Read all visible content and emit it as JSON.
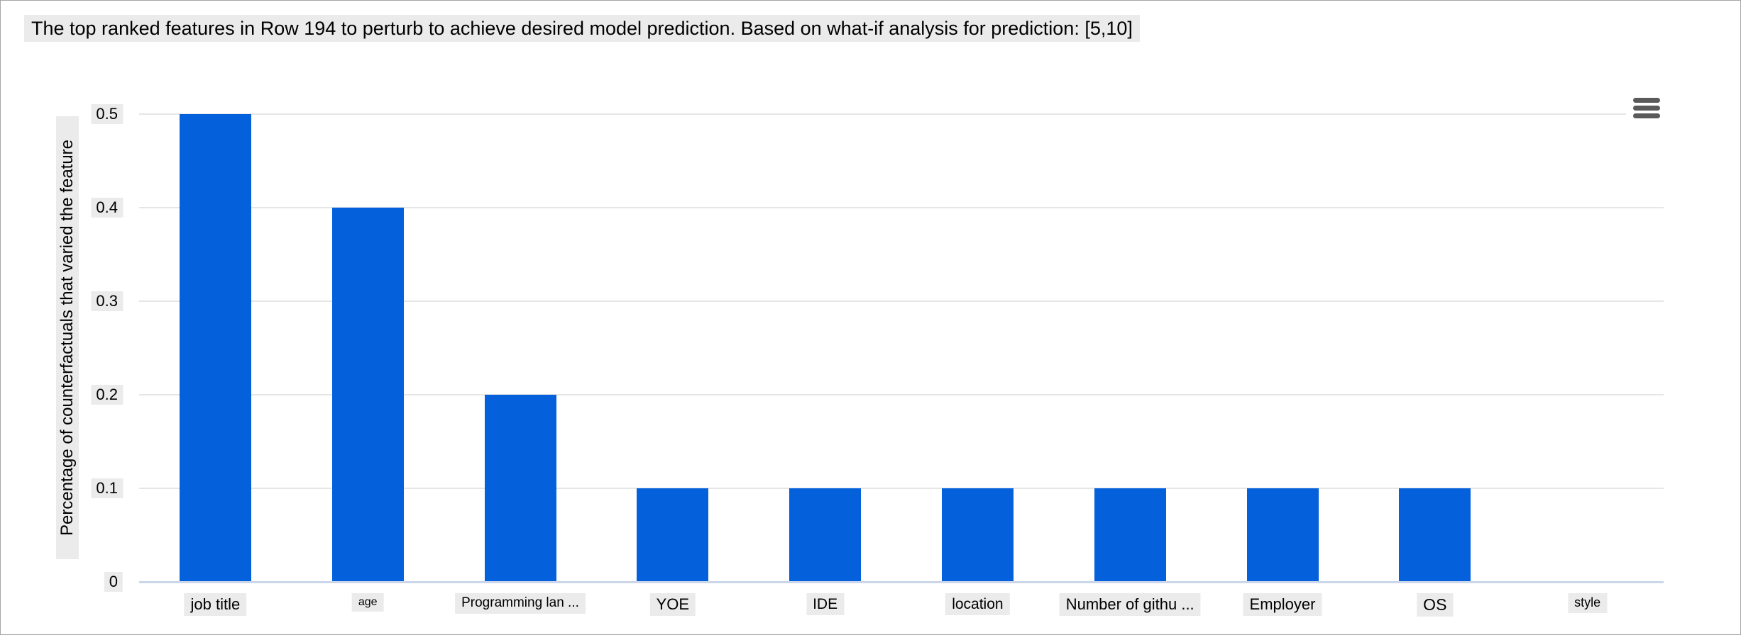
{
  "toolbar": {
    "menu_icon": "hamburger-menu-icon"
  },
  "colors": {
    "bar": "#0561db",
    "gridline": "#e6e6e6",
    "axis_line": "#ccd6eb",
    "label_background": "#ebebeb",
    "icon": "#5a5a5a",
    "text": "#000000",
    "frame_border": "#a6a6a6",
    "background": "#ffffff"
  },
  "chart_data": {
    "type": "bar",
    "title": "The top ranked features in Row 194 to perturb to achieve desired model prediction. Based on what-if analysis for prediction: [5,10]",
    "categories": [
      "job title",
      "age",
      "Programming lan ...",
      "YOE",
      "IDE",
      "location",
      "Number of githu ...",
      "Employer",
      "OS",
      "style"
    ],
    "values": [
      0.5,
      0.4,
      0.2,
      0.1,
      0.1,
      0.1,
      0.1,
      0.1,
      0.1,
      0
    ],
    "xlabel": "",
    "ylabel": "Percentage of counterfactuals that varied the feature",
    "ylim": [
      0,
      0.5
    ],
    "yticks": [
      0,
      0.1,
      0.2,
      0.3,
      0.4,
      0.5
    ],
    "ytick_labels": [
      "0",
      "0.1",
      "0.2",
      "0.3",
      "0.4",
      "0.5"
    ],
    "grid": true,
    "legend": "none",
    "category_label_font_sizes": [
      22,
      16,
      19,
      22,
      21,
      21,
      22,
      22,
      23,
      18
    ]
  }
}
